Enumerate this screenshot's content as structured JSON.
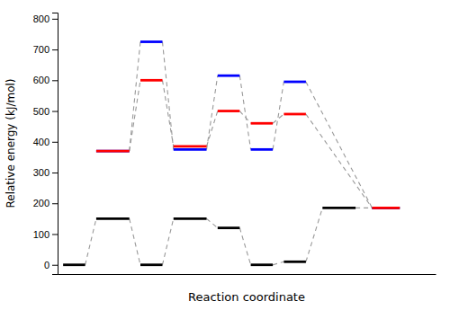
{
  "chart_data": {
    "type": "energy_levels",
    "xlabel": "Reaction coordinate",
    "ylabel": "Relative energy (kJ/mol)",
    "xlim": [
      -0.2,
      13.5
    ],
    "ylim": [
      -30,
      820
    ],
    "yticks": [
      0,
      100,
      200,
      300,
      400,
      500,
      600,
      700,
      800
    ],
    "tick_labels": "y",
    "series": [
      {
        "color": "black",
        "levels": [
          {
            "x": [
              0.0,
              0.8
            ],
            "y": 0
          },
          {
            "x": [
              1.2,
              2.4
            ],
            "y": 150
          },
          {
            "x": [
              2.8,
              3.6
            ],
            "y": 0
          },
          {
            "x": [
              4.0,
              5.2
            ],
            "y": 150
          },
          {
            "x": [
              5.6,
              6.4
            ],
            "y": 120
          },
          {
            "x": [
              6.8,
              7.6
            ],
            "y": 0
          },
          {
            "x": [
              8.0,
              8.8
            ],
            "y": 10
          },
          {
            "x": [
              9.4,
              10.6
            ],
            "y": 185
          },
          {
            "x": [
              11.2,
              12.2
            ],
            "y": 185
          }
        ],
        "connects": [
          [
            0,
            1
          ],
          [
            1,
            2
          ],
          [
            2,
            3
          ],
          [
            3,
            4
          ],
          [
            4,
            5
          ],
          [
            5,
            6
          ],
          [
            6,
            7
          ],
          [
            7,
            8
          ]
        ]
      },
      {
        "color": "blue",
        "levels": [
          {
            "x": [
              1.2,
              2.4
            ],
            "y": 370
          },
          {
            "x": [
              2.8,
              3.6
            ],
            "y": 725
          },
          {
            "x": [
              4.0,
              5.2
            ],
            "y": 375
          },
          {
            "x": [
              5.6,
              6.4
            ],
            "y": 615
          },
          {
            "x": [
              6.8,
              7.6
            ],
            "y": 375
          },
          {
            "x": [
              8.0,
              8.8
            ],
            "y": 595
          },
          {
            "x": [
              11.2,
              12.2
            ],
            "y": 185
          }
        ],
        "connects": [
          [
            0,
            1
          ],
          [
            1,
            2
          ],
          [
            2,
            3
          ],
          [
            3,
            4
          ],
          [
            4,
            5
          ],
          [
            5,
            6
          ]
        ]
      },
      {
        "color": "red",
        "levels": [
          {
            "x": [
              1.2,
              2.4
            ],
            "y": 370
          },
          {
            "x": [
              2.8,
              3.6
            ],
            "y": 600
          },
          {
            "x": [
              4.0,
              5.2
            ],
            "y": 385
          },
          {
            "x": [
              5.6,
              6.4
            ],
            "y": 500
          },
          {
            "x": [
              6.8,
              7.6
            ],
            "y": 460
          },
          {
            "x": [
              8.0,
              8.8
            ],
            "y": 490
          },
          {
            "x": [
              11.2,
              12.2
            ],
            "y": 185
          }
        ],
        "connects": [
          [
            0,
            1
          ],
          [
            1,
            2
          ],
          [
            2,
            3
          ],
          [
            3,
            4
          ],
          [
            4,
            5
          ],
          [
            5,
            6
          ]
        ]
      }
    ]
  }
}
